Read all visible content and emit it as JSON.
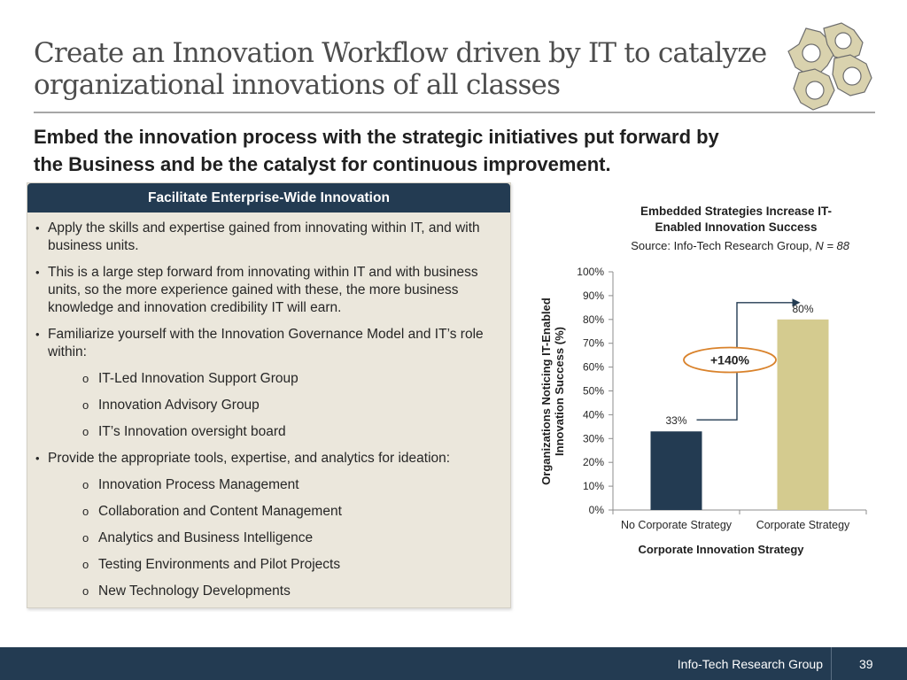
{
  "slide": {
    "title_line1": "Create an Innovation Workflow driven by IT to catalyze",
    "title_line2": "organizational innovations of all classes",
    "subtitle_line1": "Embed the innovation process with the strategic initiatives put forward by",
    "subtitle_line2": "the Business and be the catalyst for continuous improvement.",
    "logo_icon": "gears-icon"
  },
  "panel": {
    "header": "Facilitate Enterprise-Wide Innovation",
    "items": [
      {
        "level": 1,
        "text": "Apply the skills and expertise gained from innovating within IT, and with business units."
      },
      {
        "level": 1,
        "text": "This is a large step forward from innovating within IT and with business units, so the more experience gained with these, the more business knowledge and innovation credibility IT will earn."
      },
      {
        "level": 1,
        "text": "Familiarize yourself with the Innovation Governance Model and IT’s role within:"
      },
      {
        "level": 2,
        "text": "IT-Led Innovation Support Group"
      },
      {
        "level": 2,
        "text": "Innovation Advisory Group"
      },
      {
        "level": 2,
        "text": "IT’s Innovation oversight board"
      },
      {
        "level": 1,
        "text": "Provide the appropriate tools, expertise, and analytics for ideation:"
      },
      {
        "level": 2,
        "text": "Innovation Process Management"
      },
      {
        "level": 2,
        "text": "Collaboration and Content Management"
      },
      {
        "level": 2,
        "text": "Analytics and Business Intelligence"
      },
      {
        "level": 2,
        "text": "Testing Environments and Pilot Projects"
      },
      {
        "level": 2,
        "text": "New Technology Developments"
      }
    ]
  },
  "chart_data": {
    "type": "bar",
    "title_line1": "Embedded Strategies Increase IT-",
    "title_line2": "Enabled Innovation Success",
    "source_prefix": "Source: Info-Tech Research Group, ",
    "source_n": "N = 88",
    "categories": [
      "No Corporate Strategy",
      "Corporate Strategy"
    ],
    "values": [
      33,
      80
    ],
    "value_labels": [
      "33%",
      "80%"
    ],
    "colors": [
      "#233b52",
      "#d4cb8f"
    ],
    "xlabel": "Corporate Innovation Strategy",
    "ylabel_line1": "Organizations Noticing IT-Enabled",
    "ylabel_line2": "Innovation Success (%)",
    "ylim": [
      0,
      100
    ],
    "yticks": [
      0,
      10,
      20,
      30,
      40,
      50,
      60,
      70,
      80,
      90,
      100
    ],
    "ytick_labels": [
      "0%",
      "10%",
      "20%",
      "30%",
      "40%",
      "50%",
      "60%",
      "70%",
      "80%",
      "90%",
      "100%"
    ],
    "annotation": "+140%",
    "annotation_color": "#d9822b",
    "grid": false
  },
  "footer": {
    "org": "Info-Tech Research Group",
    "page": "39"
  }
}
